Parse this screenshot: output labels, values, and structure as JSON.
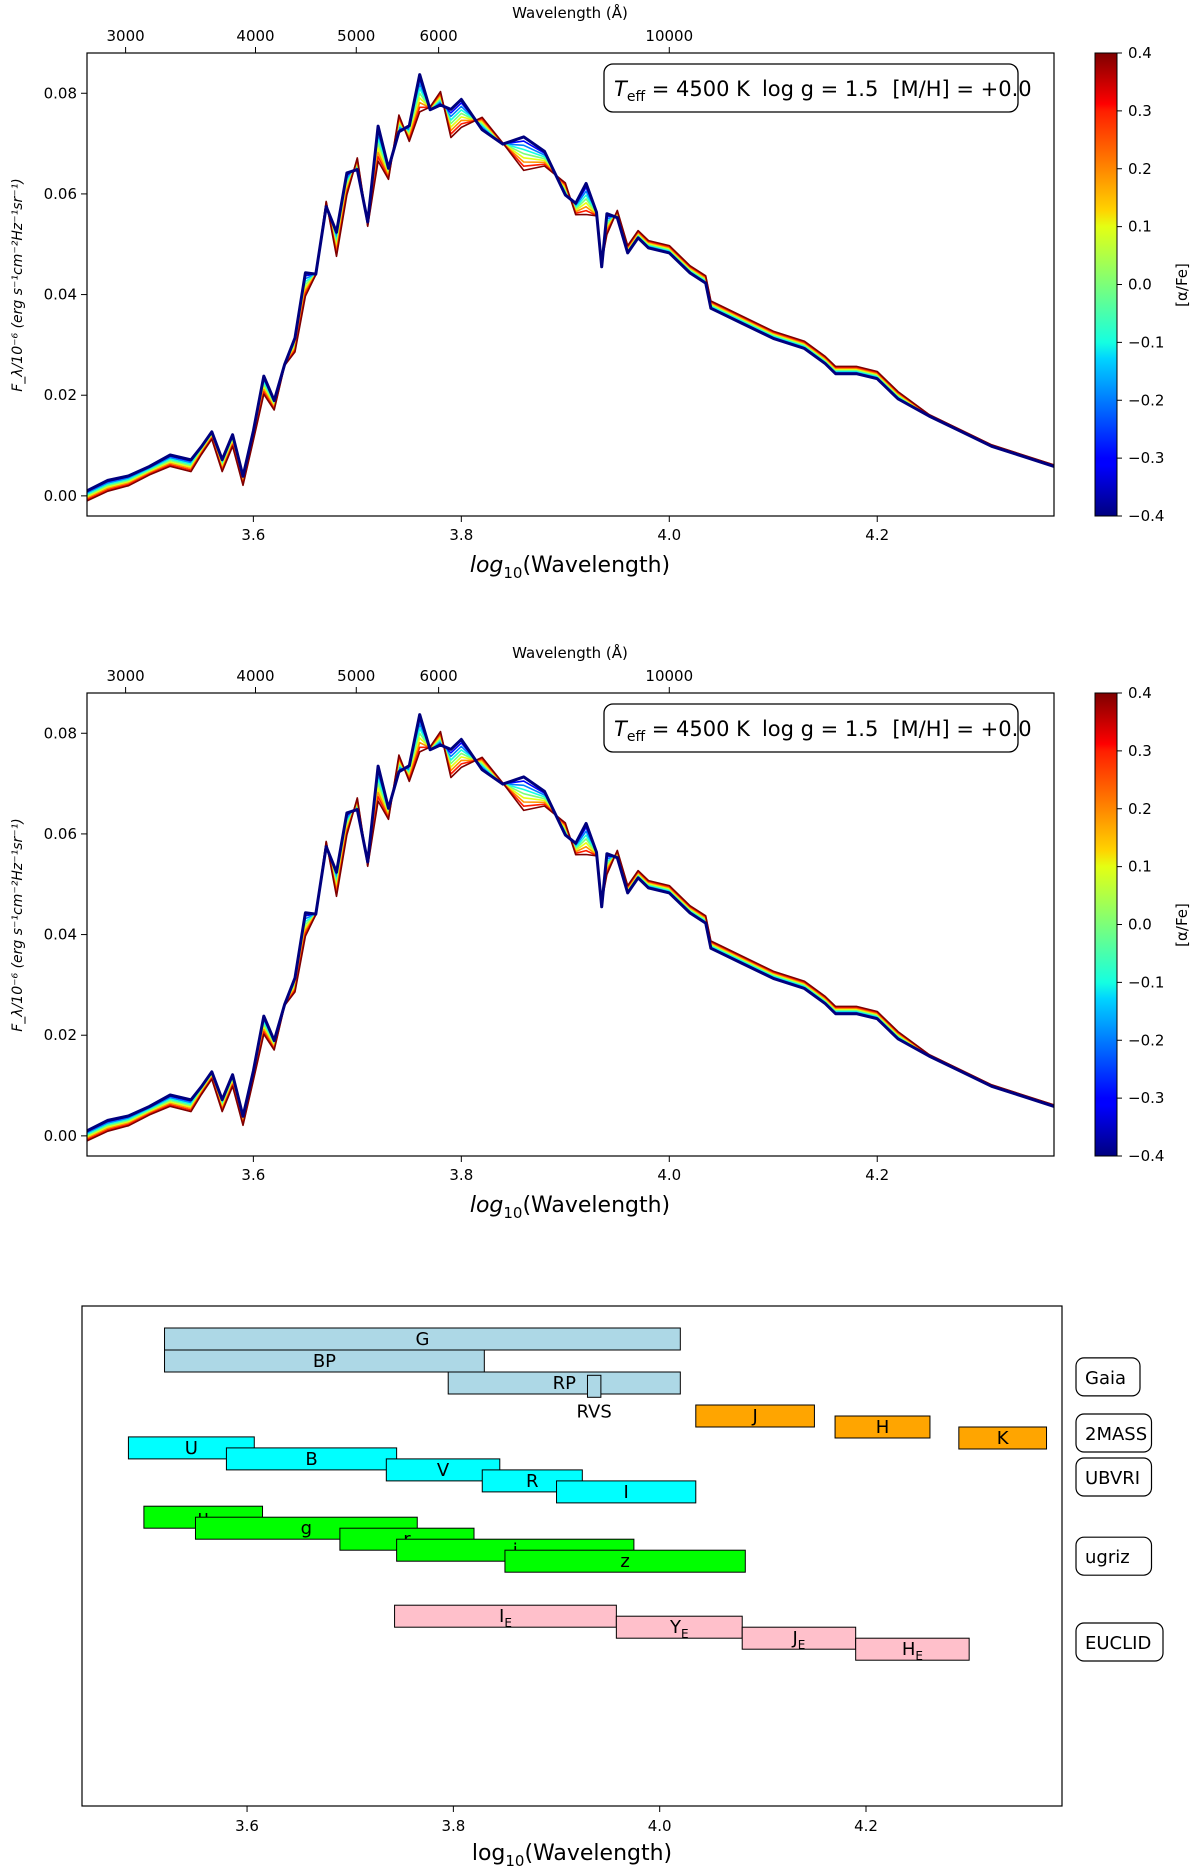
{
  "chart_data": [
    {
      "type": "line",
      "title": "",
      "annotation": {
        "teff": "T",
        "teff_sub": "eff",
        "teff_value": " = 4500 K",
        "logg": "log  g = 1.5",
        "mh": "[M/H] = +0.0"
      },
      "xlabel": "log",
      "xlabel_sub": "10",
      "xlabel_tail": "(Wavelength)",
      "top_xlabel": "Wavelength (Å)",
      "ylabel": "F_λ/10⁻⁶  (erg s⁻¹cm⁻²Hz⁻¹sr⁻¹)",
      "xlim": [
        3.44,
        4.37
      ],
      "ylim": [
        -0.004,
        0.088
      ],
      "x_ticks": [
        {
          "v": 3.6,
          "label": "3.6"
        },
        {
          "v": 3.8,
          "label": "3.8"
        },
        {
          "v": 4.0,
          "label": "4.0"
        },
        {
          "v": 4.2,
          "label": "4.2"
        }
      ],
      "y_ticks": [
        {
          "v": 0.0,
          "label": "0.00"
        },
        {
          "v": 0.02,
          "label": "0.02"
        },
        {
          "v": 0.04,
          "label": "0.04"
        },
        {
          "v": 0.06,
          "label": "0.06"
        },
        {
          "v": 0.08,
          "label": "0.08"
        }
      ],
      "top_ticks": [
        {
          "v": 3000,
          "label": "3000"
        },
        {
          "v": 4000,
          "label": "4000"
        },
        {
          "v": 5000,
          "label": "5000"
        },
        {
          "v": 6000,
          "label": "6000"
        },
        {
          "v": 10000,
          "label": "10000"
        }
      ],
      "colorbar": {
        "label": "[α/Fe]",
        "range": [
          -0.4,
          0.4
        ],
        "ticks": [
          {
            "v": 0.4,
            "label": "0.4"
          },
          {
            "v": 0.3,
            "label": "0.3"
          },
          {
            "v": 0.2,
            "label": "0.2"
          },
          {
            "v": 0.1,
            "label": "0.1"
          },
          {
            "v": 0.0,
            "label": "0.0"
          },
          {
            "v": -0.1,
            "label": "−0.1"
          },
          {
            "v": -0.2,
            "label": "−0.2"
          },
          {
            "v": -0.3,
            "label": "−0.3"
          },
          {
            "v": -0.4,
            "label": "−0.4"
          }
        ]
      },
      "series_alpha_fe": [
        -0.4,
        -0.3,
        -0.2,
        -0.1,
        0.0,
        0.1,
        0.2,
        0.3,
        0.4
      ],
      "series_colors": [
        "#00007f",
        "#0000ff",
        "#0080ff",
        "#15ffe1",
        "#7cff79",
        "#e4ff13",
        "#ff9400",
        "#ff1e00",
        "#7f0000"
      ],
      "spectrum_x": [
        3.44,
        3.46,
        3.48,
        3.5,
        3.52,
        3.54,
        3.55,
        3.56,
        3.57,
        3.58,
        3.59,
        3.6,
        3.61,
        3.62,
        3.63,
        3.64,
        3.65,
        3.66,
        3.67,
        3.68,
        3.69,
        3.7,
        3.71,
        3.72,
        3.73,
        3.74,
        3.75,
        3.76,
        3.77,
        3.78,
        3.79,
        3.8,
        3.82,
        3.84,
        3.86,
        3.88,
        3.9,
        3.91,
        3.92,
        3.93,
        3.935,
        3.94,
        3.95,
        3.96,
        3.97,
        3.98,
        4.0,
        4.02,
        4.035,
        4.04,
        4.05,
        4.07,
        4.1,
        4.13,
        4.15,
        4.16,
        4.18,
        4.2,
        4.22,
        4.25,
        4.28,
        4.31,
        4.34,
        4.37
      ],
      "spectrum_y": [
        0.0,
        0.002,
        0.003,
        0.005,
        0.007,
        0.006,
        0.009,
        0.012,
        0.006,
        0.011,
        0.003,
        0.012,
        0.022,
        0.018,
        0.026,
        0.03,
        0.042,
        0.044,
        0.058,
        0.05,
        0.062,
        0.066,
        0.054,
        0.07,
        0.064,
        0.074,
        0.072,
        0.08,
        0.077,
        0.079,
        0.074,
        0.076,
        0.074,
        0.07,
        0.068,
        0.067,
        0.061,
        0.057,
        0.059,
        0.056,
        0.046,
        0.054,
        0.056,
        0.049,
        0.052,
        0.05,
        0.049,
        0.045,
        0.043,
        0.038,
        0.037,
        0.035,
        0.032,
        0.03,
        0.027,
        0.025,
        0.025,
        0.024,
        0.02,
        0.016,
        0.013,
        0.01,
        0.008,
        0.006
      ]
    },
    {
      "type": "line",
      "title": "",
      "annotation": {
        "teff": "T",
        "teff_sub": "eff",
        "teff_value": " = 4500 K",
        "logg": "log  g = 1.5",
        "mh": "[M/H] = +0.0"
      },
      "xlabel": "log",
      "xlabel_sub": "10",
      "xlabel_tail": "(Wavelength)",
      "top_xlabel": "Wavelength (Å)",
      "ylabel": "F_λ/10⁻⁶  (erg s⁻¹cm⁻²Hz⁻¹sr⁻¹)",
      "xlim": [
        3.44,
        4.37
      ],
      "ylim": [
        -0.004,
        0.088
      ],
      "x_ticks": [
        {
          "v": 3.6,
          "label": "3.6"
        },
        {
          "v": 3.8,
          "label": "3.8"
        },
        {
          "v": 4.0,
          "label": "4.0"
        },
        {
          "v": 4.2,
          "label": "4.2"
        }
      ],
      "y_ticks": [
        {
          "v": 0.0,
          "label": "0.00"
        },
        {
          "v": 0.02,
          "label": "0.02"
        },
        {
          "v": 0.04,
          "label": "0.04"
        },
        {
          "v": 0.06,
          "label": "0.06"
        },
        {
          "v": 0.08,
          "label": "0.08"
        }
      ],
      "top_ticks": [
        {
          "v": 3000,
          "label": "3000"
        },
        {
          "v": 4000,
          "label": "4000"
        },
        {
          "v": 5000,
          "label": "5000"
        },
        {
          "v": 6000,
          "label": "6000"
        },
        {
          "v": 10000,
          "label": "10000"
        }
      ],
      "colorbar": {
        "label": "[α/Fe]",
        "range": [
          -0.4,
          0.4
        ],
        "ticks": [
          {
            "v": 0.4,
            "label": "0.4"
          },
          {
            "v": 0.3,
            "label": "0.3"
          },
          {
            "v": 0.2,
            "label": "0.2"
          },
          {
            "v": 0.1,
            "label": "0.1"
          },
          {
            "v": 0.0,
            "label": "0.0"
          },
          {
            "v": -0.1,
            "label": "−0.1"
          },
          {
            "v": -0.2,
            "label": "−0.2"
          },
          {
            "v": -0.3,
            "label": "−0.3"
          },
          {
            "v": -0.4,
            "label": "−0.4"
          }
        ]
      },
      "series_alpha_fe": [
        -0.4,
        -0.3,
        -0.2,
        -0.1,
        0.0,
        0.1,
        0.2,
        0.3,
        0.4
      ],
      "series_colors": [
        "#00007f",
        "#0000ff",
        "#0080ff",
        "#15ffe1",
        "#7cff79",
        "#e4ff13",
        "#ff9400",
        "#ff1e00",
        "#7f0000"
      ],
      "spectrum_x": [
        3.44,
        3.46,
        3.48,
        3.5,
        3.52,
        3.54,
        3.55,
        3.56,
        3.57,
        3.58,
        3.59,
        3.6,
        3.61,
        3.62,
        3.63,
        3.64,
        3.65,
        3.66,
        3.67,
        3.68,
        3.69,
        3.7,
        3.71,
        3.72,
        3.73,
        3.74,
        3.75,
        3.76,
        3.77,
        3.78,
        3.79,
        3.8,
        3.82,
        3.84,
        3.86,
        3.88,
        3.9,
        3.91,
        3.92,
        3.93,
        3.935,
        3.94,
        3.95,
        3.96,
        3.97,
        3.98,
        4.0,
        4.02,
        4.035,
        4.04,
        4.05,
        4.07,
        4.1,
        4.13,
        4.15,
        4.16,
        4.18,
        4.2,
        4.22,
        4.25,
        4.28,
        4.31,
        4.34,
        4.37
      ],
      "spectrum_y": [
        0.0,
        0.002,
        0.003,
        0.005,
        0.007,
        0.006,
        0.009,
        0.012,
        0.006,
        0.011,
        0.003,
        0.012,
        0.022,
        0.018,
        0.026,
        0.03,
        0.042,
        0.044,
        0.058,
        0.05,
        0.062,
        0.066,
        0.054,
        0.07,
        0.064,
        0.074,
        0.072,
        0.08,
        0.077,
        0.079,
        0.074,
        0.076,
        0.074,
        0.07,
        0.068,
        0.067,
        0.061,
        0.057,
        0.059,
        0.056,
        0.046,
        0.054,
        0.056,
        0.049,
        0.052,
        0.05,
        0.049,
        0.045,
        0.043,
        0.038,
        0.037,
        0.035,
        0.032,
        0.03,
        0.027,
        0.025,
        0.025,
        0.024,
        0.02,
        0.016,
        0.013,
        0.01,
        0.008,
        0.006
      ]
    },
    {
      "type": "bar",
      "subtype": "filter-band-ranges",
      "xlabel": "log",
      "xlabel_sub": "10",
      "xlabel_tail": "(Wavelength)",
      "xlim": [
        3.44,
        4.39
      ],
      "x_ticks": [
        {
          "v": 3.6,
          "label": "3.6"
        },
        {
          "v": 3.8,
          "label": "3.8"
        },
        {
          "v": 4.0,
          "label": "4.0"
        },
        {
          "v": 4.2,
          "label": "4.2"
        }
      ],
      "systems": [
        {
          "name": "Gaia",
          "color": "#add8e6",
          "bands": [
            {
              "label": "G",
              "sub": "",
              "start": 3.52,
              "end": 4.02,
              "row": 0
            },
            {
              "label": "BP",
              "sub": "",
              "start": 3.52,
              "end": 3.83,
              "row": 1
            },
            {
              "label": "RP",
              "sub": "",
              "start": 3.795,
              "end": 4.02,
              "row": 2
            },
            {
              "label": "RVS",
              "sub": "",
              "start": 3.93,
              "end": 3.943,
              "row": 2.15,
              "label_below": true
            }
          ]
        },
        {
          "name": "2MASS",
          "color": "#ffa500",
          "bands": [
            {
              "label": "J",
              "sub": "",
              "start": 4.035,
              "end": 4.15,
              "row": 3.5
            },
            {
              "label": "H",
              "sub": "",
              "start": 4.17,
              "end": 4.262,
              "row": 4
            },
            {
              "label": "K",
              "sub": "",
              "start": 4.29,
              "end": 4.375,
              "row": 4.5
            }
          ]
        },
        {
          "name": "UBVRI",
          "color": "#00ffff",
          "bands": [
            {
              "label": "U",
              "sub": "",
              "start": 3.485,
              "end": 3.607,
              "row": 4.95
            },
            {
              "label": "B",
              "sub": "",
              "start": 3.58,
              "end": 3.745,
              "row": 5.45
            },
            {
              "label": "V",
              "sub": "",
              "start": 3.735,
              "end": 3.845,
              "row": 5.95
            },
            {
              "label": "R",
              "sub": "",
              "start": 3.828,
              "end": 3.925,
              "row": 6.45
            },
            {
              "label": "I",
              "sub": "",
              "start": 3.9,
              "end": 4.035,
              "row": 6.95
            }
          ]
        },
        {
          "name": "ugriz",
          "color": "#00ff00",
          "bands": [
            {
              "label": "u",
              "sub": "",
              "start": 3.5,
              "end": 3.615,
              "row": 8.1
            },
            {
              "label": "g",
              "sub": "",
              "start": 3.55,
              "end": 3.765,
              "row": 8.6
            },
            {
              "label": "r",
              "sub": "",
              "start": 3.69,
              "end": 3.82,
              "row": 9.1
            },
            {
              "label": "i",
              "sub": "",
              "start": 3.745,
              "end": 3.975,
              "row": 9.6
            },
            {
              "label": "z",
              "sub": "",
              "start": 3.85,
              "end": 4.083,
              "row": 10.1
            }
          ]
        },
        {
          "name": "EUCLID",
          "color": "#ffc0cb",
          "bands": [
            {
              "label": "I",
              "sub": "E",
              "start": 3.743,
              "end": 3.958,
              "row": 12.6
            },
            {
              "label": "Y",
              "sub": "E",
              "start": 3.958,
              "end": 4.08,
              "row": 13.1
            },
            {
              "label": "J",
              "sub": "E",
              "start": 4.08,
              "end": 4.19,
              "row": 13.6
            },
            {
              "label": "H",
              "sub": "E",
              "start": 4.19,
              "end": 4.3,
              "row": 14.1
            }
          ]
        }
      ]
    }
  ]
}
